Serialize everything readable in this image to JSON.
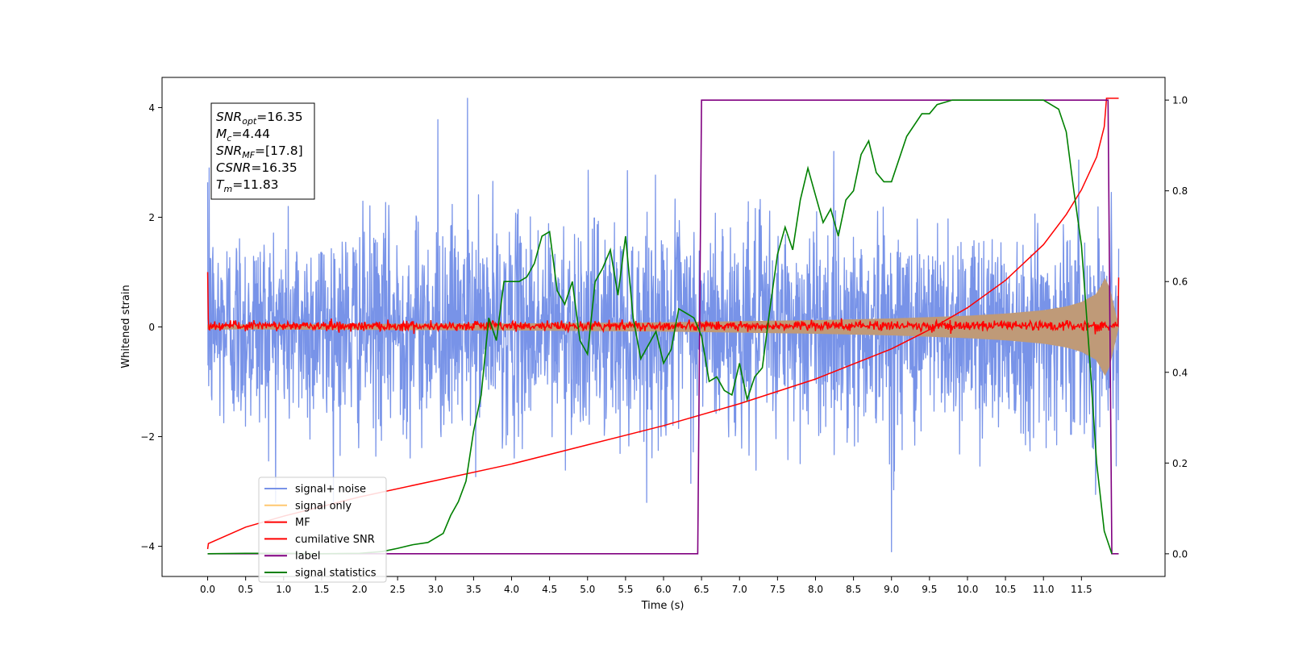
{
  "chart_data": {
    "type": "line",
    "xlabel": "Time (s)",
    "ylabel": "Whitened strain",
    "xlim": [
      -0.6,
      12.6
    ],
    "ylim_left": [
      -4.55,
      4.55
    ],
    "ylim_right": [
      -0.05,
      1.05
    ],
    "x_ticks": [
      0.0,
      0.5,
      1.0,
      1.5,
      2.0,
      2.5,
      3.0,
      3.5,
      4.0,
      4.5,
      5.0,
      5.5,
      6.0,
      6.5,
      7.0,
      7.5,
      8.0,
      8.5,
      9.0,
      9.5,
      10.0,
      10.5,
      11.0,
      11.5
    ],
    "x_tick_labels": [
      "0.0",
      "0.5",
      "1.0",
      "1.5",
      "2.0",
      "2.5",
      "3.0",
      "3.5",
      "4.0",
      "4.5",
      "5.0",
      "5.5",
      "6.0",
      "6.5",
      "7.0",
      "7.5",
      "8.0",
      "8.5",
      "9.0",
      "9.5",
      "10.0",
      "10.5",
      "11.0",
      "11.5"
    ],
    "y_left_ticks": [
      -4,
      -2,
      0,
      2,
      4
    ],
    "y_left_tick_labels": [
      "−4",
      "−2",
      "0",
      "2",
      "4"
    ],
    "y_right_ticks": [
      0.0,
      0.2,
      0.4,
      0.6,
      0.8,
      1.0
    ],
    "y_right_tick_labels": [
      "0.0",
      "0.2",
      "0.4",
      "0.6",
      "0.8",
      "1.0"
    ],
    "grid": false,
    "legend_position": "lower-left",
    "annotation_lines": [
      {
        "base": "SNR",
        "sub": "opt",
        "value": "=16.35"
      },
      {
        "base": "M",
        "sub": "c",
        "value": "=4.44"
      },
      {
        "base": "SNR",
        "sub": "MF",
        "value": "=[17.8]"
      },
      {
        "base": "CSNR",
        "sub": "",
        "value": "=16.35"
      },
      {
        "base": "T",
        "sub": "m",
        "value": "=11.83"
      }
    ],
    "series": [
      {
        "name": "signal+ noise",
        "color": "#7893e8",
        "axis": "left",
        "kind": "noise",
        "description_values": {
          "t_start": 0.0,
          "t_end": 11.99,
          "typical_amplitude": 2.4,
          "min": -4.1,
          "max": 4.17
        }
      },
      {
        "name": "signal only",
        "color": "#ffc870",
        "fill_color": "#bf9a78",
        "axis": "left",
        "kind": "chirp-envelope",
        "envelope": {
          "t": [
            0.0,
            1.0,
            2.0,
            3.0,
            4.0,
            5.0,
            6.0,
            7.0,
            8.0,
            9.0,
            10.0,
            10.5,
            11.0,
            11.3,
            11.5,
            11.7,
            11.8,
            11.83,
            11.99
          ],
          "amp": [
            0.04,
            0.045,
            0.05,
            0.055,
            0.06,
            0.07,
            0.08,
            0.1,
            0.12,
            0.15,
            0.2,
            0.24,
            0.3,
            0.37,
            0.45,
            0.6,
            0.85,
            0.95,
            0.0
          ]
        }
      },
      {
        "name": "MF",
        "color": "#ff0000",
        "axis": "left",
        "kind": "mf-noise",
        "description_values": {
          "baseline": 0.02,
          "amplitude": 0.09,
          "start_value": 1.0,
          "end_value": 0.9
        }
      },
      {
        "name": "cumilative SNR",
        "color": "#ff0000",
        "axis": "left",
        "x": [
          0.0,
          0.01,
          0.5,
          1.0,
          2.0,
          3.0,
          4.0,
          5.0,
          6.0,
          7.0,
          8.0,
          9.0,
          9.5,
          10.0,
          10.5,
          11.0,
          11.3,
          11.5,
          11.7,
          11.8,
          11.83,
          11.99
        ],
        "y": [
          -4.05,
          -3.95,
          -3.65,
          -3.45,
          -3.1,
          -2.8,
          -2.5,
          -2.15,
          -1.8,
          -1.4,
          -0.95,
          -0.4,
          -0.05,
          0.35,
          0.85,
          1.5,
          2.05,
          2.5,
          3.1,
          3.65,
          4.17,
          4.17
        ]
      },
      {
        "name": "label",
        "color": "#800080",
        "axis": "right",
        "x": [
          0.0,
          6.45,
          6.5,
          11.85,
          11.9,
          11.99
        ],
        "y": [
          0.0,
          0.0,
          1.0,
          1.0,
          0.0,
          0.0
        ]
      },
      {
        "name": "signal statistics",
        "color": "#008000",
        "axis": "right",
        "x": [
          0.0,
          0.5,
          1.0,
          1.5,
          2.0,
          2.3,
          2.5,
          2.7,
          2.9,
          3.1,
          3.2,
          3.3,
          3.4,
          3.5,
          3.6,
          3.7,
          3.8,
          3.9,
          4.0,
          4.1,
          4.2,
          4.3,
          4.4,
          4.5,
          4.6,
          4.7,
          4.8,
          4.9,
          5.0,
          5.1,
          5.2,
          5.3,
          5.4,
          5.5,
          5.6,
          5.7,
          5.8,
          5.9,
          6.0,
          6.1,
          6.2,
          6.3,
          6.4,
          6.5,
          6.6,
          6.7,
          6.8,
          6.9,
          7.0,
          7.1,
          7.2,
          7.3,
          7.4,
          7.5,
          7.6,
          7.7,
          7.8,
          7.9,
          8.0,
          8.1,
          8.2,
          8.3,
          8.4,
          8.5,
          8.6,
          8.7,
          8.8,
          8.9,
          9.0,
          9.2,
          9.4,
          9.5,
          9.6,
          9.8,
          10.0,
          10.5,
          11.0,
          11.2,
          11.3,
          11.4,
          11.5,
          11.6,
          11.7,
          11.8,
          11.9
        ],
        "y": [
          0.0,
          0.001,
          0.001,
          0.0,
          0.001,
          0.005,
          0.012,
          0.02,
          0.025,
          0.045,
          0.085,
          0.115,
          0.16,
          0.27,
          0.35,
          0.52,
          0.47,
          0.6,
          0.6,
          0.6,
          0.61,
          0.64,
          0.7,
          0.71,
          0.58,
          0.55,
          0.6,
          0.47,
          0.44,
          0.6,
          0.63,
          0.67,
          0.57,
          0.7,
          0.52,
          0.43,
          0.46,
          0.49,
          0.42,
          0.45,
          0.54,
          0.53,
          0.52,
          0.48,
          0.38,
          0.39,
          0.36,
          0.35,
          0.42,
          0.34,
          0.39,
          0.41,
          0.54,
          0.66,
          0.72,
          0.67,
          0.78,
          0.85,
          0.79,
          0.73,
          0.76,
          0.7,
          0.78,
          0.8,
          0.88,
          0.91,
          0.84,
          0.82,
          0.82,
          0.92,
          0.97,
          0.97,
          0.99,
          1.0,
          1.0,
          1.0,
          1.0,
          0.98,
          0.93,
          0.8,
          0.68,
          0.45,
          0.2,
          0.05,
          0.0
        ]
      }
    ]
  }
}
